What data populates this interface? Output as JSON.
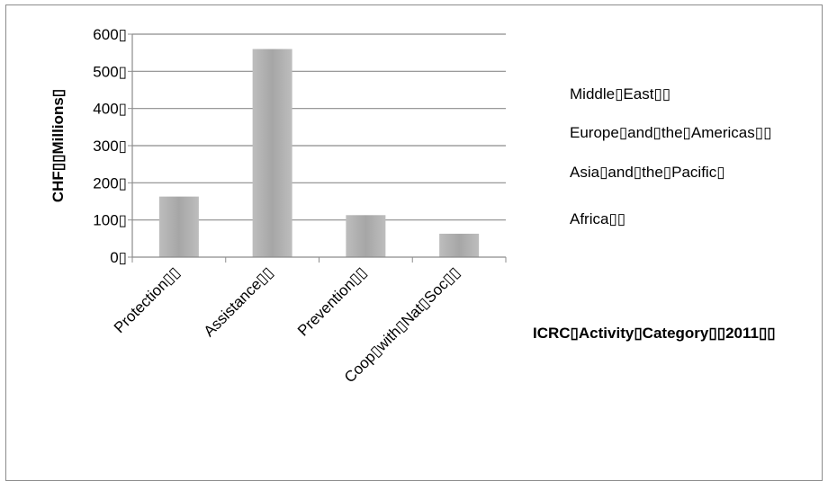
{
  "chart_data": {
    "type": "bar",
    "title": "ICRC▯Activity▯Category▯▯2011▯▯",
    "ylabel": "CHF▯▯Millions▯",
    "xlabel": "",
    "ylim": [
      0,
      600
    ],
    "yticks": [
      "0▯",
      "100▯",
      "200▯",
      "300▯",
      "400▯",
      "500▯",
      "600▯"
    ],
    "categories": [
      "Protection▯▯",
      "Assistance▯▯",
      "Prevention▯▯",
      "Coop▯with▯Nat▯Soc▯▯"
    ],
    "values": [
      163,
      560,
      113,
      63
    ],
    "legend": [
      "Middle▯East▯▯",
      "Europe▯and▯the▯Americas▯▯",
      "Asia▯and▯the▯Pacific▯",
      "Africa▯▯"
    ],
    "legend_position": "right",
    "grid": true,
    "bar_color": "#a6a6a6"
  }
}
